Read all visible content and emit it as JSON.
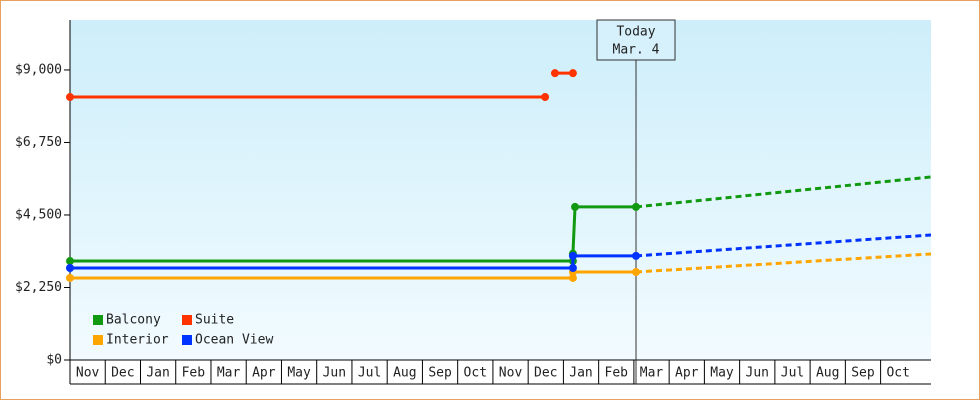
{
  "chart_data": {
    "type": "line",
    "categories": [
      "Nov",
      "Dec",
      "Jan",
      "Feb",
      "Mar",
      "Apr",
      "May",
      "Jun",
      "Jul",
      "Aug",
      "Sep",
      "Oct",
      "Nov",
      "Dec",
      "Jan",
      "Feb",
      "Mar",
      "Apr",
      "May",
      "Jun",
      "Jul",
      "Aug",
      "Sep",
      "Oct"
    ],
    "xlim": [
      0,
      24.43
    ],
    "ylim": [
      0,
      10550
    ],
    "yticks": [
      {
        "value": 0,
        "label": "$0"
      },
      {
        "value": 2250,
        "label": "$2,250"
      },
      {
        "value": 4500,
        "label": "$4,500"
      },
      {
        "value": 6750,
        "label": "$6,750"
      },
      {
        "value": 9000,
        "label": "$9,000"
      }
    ],
    "annotation": {
      "x": 16.06,
      "lines": [
        "Today",
        "Mar. 4"
      ]
    },
    "series": [
      {
        "name": "Balcony",
        "color": "#119911",
        "x": [
          0,
          14.27,
          14.27,
          14.33,
          16.06
        ],
        "values": [
          3070,
          3070,
          3300,
          4750,
          4750
        ],
        "forecast_x": [
          16.06,
          24.43
        ],
        "forecast_values": [
          4750,
          5680
        ]
      },
      {
        "name": "Suite",
        "color": "#ff3300",
        "x": [
          0,
          13.48,
          13.6,
          13.76,
          14.27
        ],
        "values": [
          8160,
          8160,
          null,
          8900,
          8900
        ]
      },
      {
        "name": "Interior",
        "color": "#ffa500",
        "x": [
          0,
          14.27,
          14.27,
          16.06
        ],
        "values": [
          2545,
          2545,
          2730,
          2730
        ],
        "forecast_x": [
          16.06,
          24.43
        ],
        "forecast_values": [
          2730,
          3290
        ]
      },
      {
        "name": "Ocean View",
        "color": "#0033ff",
        "x": [
          0,
          14.27,
          14.27,
          16.06
        ],
        "values": [
          2855,
          2855,
          3230,
          3230
        ],
        "forecast_x": [
          16.06,
          24.43
        ],
        "forecast_values": [
          3230,
          3880
        ]
      }
    ]
  }
}
